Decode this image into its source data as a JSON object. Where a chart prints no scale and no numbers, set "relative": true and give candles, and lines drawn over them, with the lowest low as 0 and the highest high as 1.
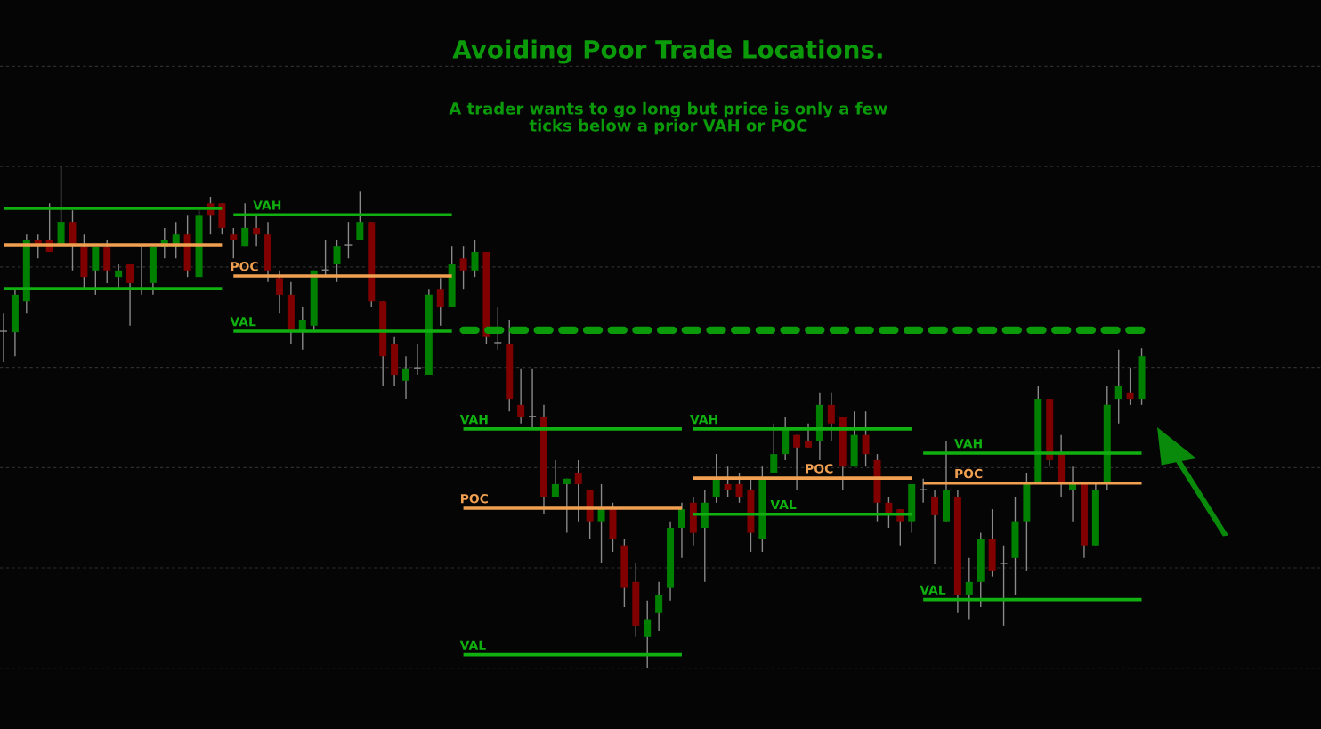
{
  "chart_data": {
    "type": "candlestick",
    "title": "Avoiding Poor Trade Locations.",
    "subtitle": "A trader wants to go long but price is only a few\nticks below a prior VAH or POC",
    "relative": true,
    "grid": "y",
    "colors": [
      "#8a8a8a",
      "#008000",
      "#008000",
      "#800000",
      "#800000",
      "#008000",
      "#800000",
      "#800000",
      "#008000",
      "#800000",
      "#008000",
      "#800000",
      "#8a8a8a",
      "#008000",
      "#008000",
      "#008000",
      "#800000",
      "#008000",
      "#800000",
      "#800000",
      "#800000",
      "#008000",
      "#800000",
      "#800000",
      "#800000",
      "#800000",
      "#008000",
      "#008000",
      "#8a8a8a",
      "#008000",
      "#8a8a8a",
      "#008000",
      "#800000",
      "#800000",
      "#800000",
      "#008000",
      "#8a8a8a",
      "#008000",
      "#800000",
      "#008000",
      "#800000",
      "#008000",
      "#800000",
      "#8a8a8a",
      "#800000",
      "#800000",
      "#8a8a8a",
      "#800000",
      "#008000",
      "#008000",
      "#800000",
      "#800000",
      "#008000",
      "#800000",
      "#800000",
      "#800000",
      "#008000",
      "#008000",
      "#008000",
      "#008000",
      "#800000",
      "#008000",
      "#008000",
      "#800000",
      "#800000",
      "#800000",
      "#008000",
      "#008000",
      "#008000",
      "#800000",
      "#800000",
      "#008000",
      "#800000",
      "#800000",
      "#008000",
      "#800000",
      "#800000",
      "#800000",
      "#800000",
      "#008000",
      "#8a8a8a",
      "#800000",
      "#008000",
      "#800000",
      "#008000",
      "#008000",
      "#800000",
      "#8a8a8a",
      "#008000",
      "#008000",
      "#008000",
      "#800000",
      "#800000",
      "#008000",
      "#800000",
      "#008000",
      "#008000",
      "#008000",
      "#800000",
      "#008000"
    ],
    "categories": [
      null,
      null,
      null,
      null,
      null,
      null,
      null,
      null,
      null,
      null,
      null,
      null,
      null,
      null,
      null,
      null,
      null,
      null,
      null,
      null,
      null,
      null,
      null,
      null,
      null,
      null,
      null,
      null,
      null,
      null,
      null,
      null,
      null,
      null,
      null,
      null,
      null,
      null,
      null,
      null,
      null,
      null,
      null,
      null,
      null,
      null,
      null,
      null,
      null,
      null,
      null,
      null,
      null,
      null,
      null,
      null,
      null,
      null,
      null,
      null,
      null,
      null,
      null,
      null,
      null,
      null,
      null,
      null,
      null,
      null,
      null,
      null,
      null,
      null,
      null,
      null,
      null,
      null,
      null,
      null,
      null,
      null,
      null,
      null,
      null,
      null,
      null,
      null,
      null,
      null,
      null,
      null,
      null,
      null,
      null,
      null,
      null,
      null,
      null,
      null
    ],
    "ohlc": [
      [
        0.672,
        0.707,
        0.61,
        0.672
      ],
      [
        0.67,
        0.754,
        0.622,
        0.745
      ],
      [
        0.732,
        0.865,
        0.707,
        0.853
      ],
      [
        0.853,
        0.865,
        0.817,
        0.846
      ],
      [
        0.853,
        0.927,
        0.83,
        0.83
      ],
      [
        0.846,
        1.0,
        0.846,
        0.89
      ],
      [
        0.89,
        0.913,
        0.793,
        0.846
      ],
      [
        0.84,
        0.865,
        0.759,
        0.78
      ],
      [
        0.793,
        0.84,
        0.745,
        0.84
      ],
      [
        0.84,
        0.853,
        0.768,
        0.793
      ],
      [
        0.78,
        0.805,
        0.759,
        0.793
      ],
      [
        0.805,
        0.805,
        0.683,
        0.768
      ],
      [
        0.84,
        0.84,
        0.745,
        0.84
      ],
      [
        0.768,
        0.84,
        0.745,
        0.84
      ],
      [
        0.84,
        0.878,
        0.817,
        0.853
      ],
      [
        0.84,
        0.89,
        0.817,
        0.865
      ],
      [
        0.865,
        0.902,
        0.78,
        0.793
      ],
      [
        0.78,
        0.913,
        0.78,
        0.902
      ],
      [
        0.927,
        0.94,
        0.865,
        0.902
      ],
      [
        0.927,
        0.927,
        0.865,
        0.878
      ],
      [
        0.865,
        0.878,
        0.817,
        0.853
      ],
      [
        0.842,
        0.927,
        0.842,
        0.878
      ],
      [
        0.878,
        0.901,
        0.842,
        0.865
      ],
      [
        0.865,
        0.89,
        0.77,
        0.793
      ],
      [
        0.778,
        0.793,
        0.707,
        0.745
      ],
      [
        0.745,
        0.77,
        0.647,
        0.672
      ],
      [
        0.672,
        0.72,
        0.635,
        0.695
      ],
      [
        0.683,
        0.793,
        0.672,
        0.793
      ],
      [
        0.794,
        0.853,
        0.782,
        0.794
      ],
      [
        0.805,
        0.853,
        0.77,
        0.842
      ],
      [
        0.844,
        0.89,
        0.817,
        0.844
      ],
      [
        0.853,
        0.95,
        0.853,
        0.89
      ],
      [
        0.89,
        0.89,
        0.72,
        0.732
      ],
      [
        0.732,
        0.732,
        0.562,
        0.622
      ],
      [
        0.647,
        0.66,
        0.562,
        0.585
      ],
      [
        0.573,
        0.622,
        0.537,
        0.598
      ],
      [
        0.599,
        0.647,
        0.585,
        0.599
      ],
      [
        0.585,
        0.755,
        0.585,
        0.745
      ],
      [
        0.755,
        0.778,
        0.683,
        0.72
      ],
      [
        0.72,
        0.842,
        0.72,
        0.805
      ],
      [
        0.817,
        0.842,
        0.755,
        0.793
      ],
      [
        0.793,
        0.853,
        0.78,
        0.83
      ],
      [
        0.83,
        0.83,
        0.647,
        0.66
      ],
      [
        0.649,
        0.72,
        0.635,
        0.649
      ],
      [
        0.647,
        0.695,
        0.512,
        0.537
      ],
      [
        0.525,
        0.598,
        0.488,
        0.5
      ],
      [
        0.502,
        0.598,
        0.479,
        0.502
      ],
      [
        0.5,
        0.525,
        0.307,
        0.342
      ],
      [
        0.342,
        0.415,
        0.342,
        0.367
      ],
      [
        0.367,
        0.378,
        0.27,
        0.378
      ],
      [
        0.39,
        0.415,
        0.293,
        0.367
      ],
      [
        0.355,
        0.355,
        0.257,
        0.293
      ],
      [
        0.293,
        0.367,
        0.209,
        0.317
      ],
      [
        0.317,
        0.33,
        0.232,
        0.257
      ],
      [
        0.245,
        0.257,
        0.122,
        0.16
      ],
      [
        0.172,
        0.209,
        0.062,
        0.085
      ],
      [
        0.062,
        0.135,
        0,
        0.098
      ],
      [
        0.11,
        0.172,
        0.074,
        0.147
      ],
      [
        0.16,
        0.293,
        0.135,
        0.28
      ],
      [
        0.28,
        0.33,
        0.22,
        0.317
      ],
      [
        0.33,
        0.342,
        0.245,
        0.27
      ],
      [
        0.28,
        0.355,
        0.172,
        0.33
      ],
      [
        0.342,
        0.427,
        0.33,
        0.378
      ],
      [
        0.367,
        0.402,
        0.342,
        0.355
      ],
      [
        0.367,
        0.39,
        0.33,
        0.342
      ],
      [
        0.355,
        0.378,
        0.232,
        0.27
      ],
      [
        0.257,
        0.402,
        0.232,
        0.378
      ],
      [
        0.39,
        0.488,
        0.39,
        0.427
      ],
      [
        0.427,
        0.5,
        0.415,
        0.475
      ],
      [
        0.465,
        0.465,
        0.355,
        0.44
      ],
      [
        0.452,
        0.488,
        0.44,
        0.44
      ],
      [
        0.452,
        0.55,
        0.415,
        0.525
      ],
      [
        0.525,
        0.55,
        0.452,
        0.488
      ],
      [
        0.5,
        0.5,
        0.355,
        0.402
      ],
      [
        0.402,
        0.512,
        0.402,
        0.465
      ],
      [
        0.465,
        0.512,
        0.402,
        0.427
      ],
      [
        0.415,
        0.427,
        0.293,
        0.33
      ],
      [
        0.33,
        0.342,
        0.28,
        0.305
      ],
      [
        0.317,
        0.317,
        0.245,
        0.293
      ],
      [
        0.293,
        0.367,
        0.27,
        0.367
      ],
      [
        0.356,
        0.378,
        0.33,
        0.356
      ],
      [
        0.342,
        0.355,
        0.207,
        0.305
      ],
      [
        0.293,
        0.452,
        0.293,
        0.355
      ],
      [
        0.342,
        0.355,
        0.11,
        0.147
      ],
      [
        0.147,
        0.22,
        0.098,
        0.172
      ],
      [
        0.172,
        0.27,
        0.122,
        0.257
      ],
      [
        0.257,
        0.317,
        0.183,
        0.195
      ],
      [
        0.209,
        0.245,
        0.085,
        0.209
      ],
      [
        0.22,
        0.342,
        0.147,
        0.293
      ],
      [
        0.293,
        0.39,
        0.195,
        0.367
      ],
      [
        0.369,
        0.562,
        0.369,
        0.537
      ],
      [
        0.537,
        0.537,
        0.402,
        0.415
      ],
      [
        0.427,
        0.465,
        0.342,
        0.369
      ],
      [
        0.355,
        0.402,
        0.293,
        0.367
      ],
      [
        0.367,
        0.367,
        0.22,
        0.245
      ],
      [
        0.245,
        0.367,
        0.245,
        0.355
      ],
      [
        0.369,
        0.562,
        0.355,
        0.525
      ],
      [
        0.537,
        0.635,
        0.488,
        0.562
      ],
      [
        0.55,
        0.599,
        0.525,
        0.537
      ],
      [
        0.537,
        0.638,
        0.525,
        0.622
      ]
    ],
    "series": [
      {
        "type": "line",
        "color": "#10b010",
        "values": [
          0.917,
          0.917,
          0.917,
          0.917,
          0.917,
          0.917,
          0.917,
          0.917,
          0.917,
          0.917,
          0.917,
          0.917,
          0.917,
          0.917,
          0.917,
          0.917,
          0.917,
          0.917,
          0.917,
          0.917,
          null,
          null,
          null,
          null,
          null,
          null,
          null,
          null,
          null,
          null,
          null,
          null,
          null,
          null,
          null,
          null,
          null,
          null,
          null,
          null,
          null,
          null,
          null,
          null,
          null,
          null,
          null,
          null,
          null,
          null,
          null,
          null,
          null,
          null,
          null,
          null,
          null,
          null,
          null,
          null,
          null,
          null,
          null,
          null,
          null,
          null,
          null,
          null,
          null,
          null,
          null,
          null,
          null,
          null,
          null,
          null,
          null,
          null,
          null,
          null,
          null,
          null,
          null,
          null,
          null,
          null,
          null,
          null,
          null,
          null,
          null,
          null,
          null,
          null,
          null,
          null,
          null,
          null,
          null,
          null
        ]
      },
      {
        "type": "line",
        "color": "#f0a050",
        "values": [
          0.844,
          0.844,
          0.844,
          0.844,
          0.844,
          0.844,
          0.844,
          0.844,
          0.844,
          0.844,
          0.844,
          0.844,
          0.844,
          0.844,
          0.844,
          0.844,
          0.844,
          0.844,
          0.844,
          0.844,
          null,
          null,
          null,
          null,
          null,
          null,
          null,
          null,
          null,
          null,
          null,
          null,
          null,
          null,
          null,
          null,
          null,
          null,
          null,
          null,
          null,
          null,
          null,
          null,
          null,
          null,
          null,
          null,
          null,
          null,
          null,
          null,
          null,
          null,
          null,
          null,
          null,
          null,
          null,
          null,
          null,
          null,
          null,
          null,
          null,
          null,
          null,
          null,
          null,
          null,
          null,
          null,
          null,
          null,
          null,
          null,
          null,
          null,
          null,
          null,
          null,
          null,
          null,
          null,
          null,
          null,
          null,
          null,
          null,
          null,
          null,
          null,
          null,
          null,
          null,
          null,
          null,
          null,
          null,
          null
        ]
      },
      {
        "type": "line",
        "color": "#10b010",
        "values": [
          0.757,
          0.757,
          0.757,
          0.757,
          0.757,
          0.757,
          0.757,
          0.757,
          0.757,
          0.757,
          0.757,
          0.757,
          0.757,
          0.757,
          0.757,
          0.757,
          0.757,
          0.757,
          0.757,
          0.757,
          null,
          null,
          null,
          null,
          null,
          null,
          null,
          null,
          null,
          null,
          null,
          null,
          null,
          null,
          null,
          null,
          null,
          null,
          null,
          null,
          null,
          null,
          null,
          null,
          null,
          null,
          null,
          null,
          null,
          null,
          null,
          null,
          null,
          null,
          null,
          null,
          null,
          null,
          null,
          null,
          null,
          null,
          null,
          null,
          null,
          null,
          null,
          null,
          null,
          null,
          null,
          null,
          null,
          null,
          null,
          null,
          null,
          null,
          null,
          null,
          null,
          null,
          null,
          null,
          null,
          null,
          null,
          null,
          null,
          null,
          null,
          null,
          null,
          null,
          null,
          null,
          null,
          null,
          null,
          null
        ]
      },
      {
        "type": "line",
        "name": "VAH",
        "color": "#10b010",
        "values": [
          null,
          null,
          null,
          null,
          null,
          null,
          null,
          null,
          null,
          null,
          null,
          null,
          null,
          null,
          null,
          null,
          null,
          null,
          null,
          null,
          0.904,
          0.904,
          0.904,
          0.904,
          0.904,
          0.904,
          0.904,
          0.904,
          0.904,
          0.904,
          0.904,
          0.904,
          0.904,
          0.904,
          0.904,
          0.904,
          0.904,
          0.904,
          0.904,
          0.904,
          null,
          null,
          null,
          null,
          null,
          null,
          null,
          null,
          null,
          null,
          null,
          null,
          null,
          null,
          null,
          null,
          null,
          null,
          null,
          null,
          null,
          null,
          null,
          null,
          null,
          null,
          null,
          null,
          null,
          null,
          null,
          null,
          null,
          null,
          null,
          null,
          null,
          null,
          null,
          null,
          null,
          null,
          null,
          null,
          null,
          null,
          null,
          null,
          null,
          null,
          null,
          null,
          null,
          null,
          null,
          null,
          null,
          null,
          null,
          null
        ]
      },
      {
        "type": "line",
        "name": "POC",
        "color": "#f0a050",
        "values": [
          null,
          null,
          null,
          null,
          null,
          null,
          null,
          null,
          null,
          null,
          null,
          null,
          null,
          null,
          null,
          null,
          null,
          null,
          null,
          null,
          0.782,
          0.782,
          0.782,
          0.782,
          0.782,
          0.782,
          0.782,
          0.782,
          0.782,
          0.782,
          0.782,
          0.782,
          0.782,
          0.782,
          0.782,
          0.782,
          0.782,
          0.782,
          0.782,
          0.782,
          null,
          null,
          null,
          null,
          null,
          null,
          null,
          null,
          null,
          null,
          null,
          null,
          null,
          null,
          null,
          null,
          null,
          null,
          null,
          null,
          null,
          null,
          null,
          null,
          null,
          null,
          null,
          null,
          null,
          null,
          null,
          null,
          null,
          null,
          null,
          null,
          null,
          null,
          null,
          null,
          null,
          null,
          null,
          null,
          null,
          null,
          null,
          null,
          null,
          null,
          null,
          null,
          null,
          null,
          null,
          null,
          null,
          null,
          null,
          null
        ]
      },
      {
        "type": "line",
        "name": "VAL",
        "color": "#10b010",
        "values": [
          null,
          null,
          null,
          null,
          null,
          null,
          null,
          null,
          null,
          null,
          null,
          null,
          null,
          null,
          null,
          null,
          null,
          null,
          null,
          null,
          0.672,
          0.672,
          0.672,
          0.672,
          0.672,
          0.672,
          0.672,
          0.672,
          0.672,
          0.672,
          0.672,
          0.672,
          0.672,
          0.672,
          0.672,
          0.672,
          0.672,
          0.672,
          0.672,
          0.672,
          null,
          null,
          null,
          null,
          null,
          null,
          null,
          null,
          null,
          null,
          null,
          null,
          null,
          null,
          null,
          null,
          null,
          null,
          null,
          null,
          null,
          null,
          null,
          null,
          null,
          null,
          null,
          null,
          null,
          null,
          null,
          null,
          null,
          null,
          null,
          null,
          null,
          null,
          null,
          null,
          null,
          null,
          null,
          null,
          null,
          null,
          null,
          null,
          null,
          null,
          null,
          null,
          null,
          null,
          null,
          null,
          null,
          null,
          null,
          null
        ]
      },
      {
        "type": "line",
        "name": "VAH",
        "color": "#10b010",
        "values": [
          null,
          null,
          null,
          null,
          null,
          null,
          null,
          null,
          null,
          null,
          null,
          null,
          null,
          null,
          null,
          null,
          null,
          null,
          null,
          null,
          null,
          null,
          null,
          null,
          null,
          null,
          null,
          null,
          null,
          null,
          null,
          null,
          null,
          null,
          null,
          null,
          null,
          null,
          null,
          null,
          0.477,
          0.477,
          0.477,
          0.477,
          0.477,
          0.477,
          0.477,
          0.477,
          0.477,
          0.477,
          0.477,
          0.477,
          0.477,
          0.477,
          0.477,
          0.477,
          0.477,
          0.477,
          0.477,
          0.477,
          null,
          null,
          null,
          null,
          null,
          null,
          null,
          null,
          null,
          null,
          null,
          null,
          null,
          null,
          null,
          null,
          null,
          null,
          null,
          null,
          null,
          null,
          null,
          null,
          null,
          null,
          null,
          null,
          null,
          null,
          null,
          null,
          null,
          null,
          null,
          null,
          null,
          null,
          null,
          null
        ]
      },
      {
        "type": "line",
        "name": "POC",
        "color": "#f0a050",
        "values": [
          null,
          null,
          null,
          null,
          null,
          null,
          null,
          null,
          null,
          null,
          null,
          null,
          null,
          null,
          null,
          null,
          null,
          null,
          null,
          null,
          null,
          null,
          null,
          null,
          null,
          null,
          null,
          null,
          null,
          null,
          null,
          null,
          null,
          null,
          null,
          null,
          null,
          null,
          null,
          null,
          0.319,
          0.319,
          0.319,
          0.319,
          0.319,
          0.319,
          0.319,
          0.319,
          0.319,
          0.319,
          0.319,
          0.319,
          0.319,
          0.319,
          0.319,
          0.319,
          0.319,
          0.319,
          0.319,
          0.319,
          null,
          null,
          null,
          null,
          null,
          null,
          null,
          null,
          null,
          null,
          null,
          null,
          null,
          null,
          null,
          null,
          null,
          null,
          null,
          null,
          null,
          null,
          null,
          null,
          null,
          null,
          null,
          null,
          null,
          null,
          null,
          null,
          null,
          null,
          null,
          null,
          null,
          null,
          null,
          null
        ]
      },
      {
        "type": "line",
        "name": "VAL",
        "color": "#10b010",
        "values": [
          null,
          null,
          null,
          null,
          null,
          null,
          null,
          null,
          null,
          null,
          null,
          null,
          null,
          null,
          null,
          null,
          null,
          null,
          null,
          null,
          null,
          null,
          null,
          null,
          null,
          null,
          null,
          null,
          null,
          null,
          null,
          null,
          null,
          null,
          null,
          null,
          null,
          null,
          null,
          null,
          0.027,
          0.027,
          0.027,
          0.027,
          0.027,
          0.027,
          0.027,
          0.027,
          0.027,
          0.027,
          0.027,
          0.027,
          0.027,
          0.027,
          0.027,
          0.027,
          0.027,
          0.027,
          0.027,
          0.027,
          null,
          null,
          null,
          null,
          null,
          null,
          null,
          null,
          null,
          null,
          null,
          null,
          null,
          null,
          null,
          null,
          null,
          null,
          null,
          null,
          null,
          null,
          null,
          null,
          null,
          null,
          null,
          null,
          null,
          null,
          null,
          null,
          null,
          null,
          null,
          null,
          null,
          null,
          null,
          null
        ]
      },
      {
        "type": "line",
        "name": "VAH",
        "color": "#10b010",
        "values": [
          null,
          null,
          null,
          null,
          null,
          null,
          null,
          null,
          null,
          null,
          null,
          null,
          null,
          null,
          null,
          null,
          null,
          null,
          null,
          null,
          null,
          null,
          null,
          null,
          null,
          null,
          null,
          null,
          null,
          null,
          null,
          null,
          null,
          null,
          null,
          null,
          null,
          null,
          null,
          null,
          null,
          null,
          null,
          null,
          null,
          null,
          null,
          null,
          null,
          null,
          null,
          null,
          null,
          null,
          null,
          null,
          null,
          null,
          null,
          null,
          0.477,
          0.477,
          0.477,
          0.477,
          0.477,
          0.477,
          0.477,
          0.477,
          0.477,
          0.477,
          0.477,
          0.477,
          0.477,
          0.477,
          0.477,
          0.477,
          0.477,
          0.477,
          0.477,
          0.477,
          null,
          null,
          null,
          null,
          null,
          null,
          null,
          null,
          null,
          null,
          null,
          null,
          null,
          null,
          null,
          null,
          null,
          null,
          null,
          null
        ]
      },
      {
        "type": "line",
        "name": "POC",
        "color": "#f0a050",
        "values": [
          null,
          null,
          null,
          null,
          null,
          null,
          null,
          null,
          null,
          null,
          null,
          null,
          null,
          null,
          null,
          null,
          null,
          null,
          null,
          null,
          null,
          null,
          null,
          null,
          null,
          null,
          null,
          null,
          null,
          null,
          null,
          null,
          null,
          null,
          null,
          null,
          null,
          null,
          null,
          null,
          null,
          null,
          null,
          null,
          null,
          null,
          null,
          null,
          null,
          null,
          null,
          null,
          null,
          null,
          null,
          null,
          null,
          null,
          null,
          null,
          0.379,
          0.379,
          0.379,
          0.379,
          0.379,
          0.379,
          0.379,
          0.379,
          0.379,
          0.379,
          0.379,
          0.379,
          0.379,
          0.379,
          0.379,
          0.379,
          0.379,
          0.379,
          0.379,
          0.379,
          null,
          null,
          null,
          null,
          null,
          null,
          null,
          null,
          null,
          null,
          null,
          null,
          null,
          null,
          null,
          null,
          null,
          null,
          null,
          null
        ]
      },
      {
        "type": "line",
        "name": "VAL",
        "color": "#10b010",
        "values": [
          null,
          null,
          null,
          null,
          null,
          null,
          null,
          null,
          null,
          null,
          null,
          null,
          null,
          null,
          null,
          null,
          null,
          null,
          null,
          null,
          null,
          null,
          null,
          null,
          null,
          null,
          null,
          null,
          null,
          null,
          null,
          null,
          null,
          null,
          null,
          null,
          null,
          null,
          null,
          null,
          null,
          null,
          null,
          null,
          null,
          null,
          null,
          null,
          null,
          null,
          null,
          null,
          null,
          null,
          null,
          null,
          null,
          null,
          null,
          null,
          0.307,
          0.307,
          0.307,
          0.307,
          0.307,
          0.307,
          0.307,
          0.307,
          0.307,
          0.307,
          0.307,
          0.307,
          0.307,
          0.307,
          0.307,
          0.307,
          0.307,
          0.307,
          0.307,
          0.307,
          null,
          null,
          null,
          null,
          null,
          null,
          null,
          null,
          null,
          null,
          null,
          null,
          null,
          null,
          null,
          null,
          null,
          null,
          null,
          null
        ]
      },
      {
        "type": "line",
        "name": "VAH",
        "color": "#10b010",
        "values": [
          null,
          null,
          null,
          null,
          null,
          null,
          null,
          null,
          null,
          null,
          null,
          null,
          null,
          null,
          null,
          null,
          null,
          null,
          null,
          null,
          null,
          null,
          null,
          null,
          null,
          null,
          null,
          null,
          null,
          null,
          null,
          null,
          null,
          null,
          null,
          null,
          null,
          null,
          null,
          null,
          null,
          null,
          null,
          null,
          null,
          null,
          null,
          null,
          null,
          null,
          null,
          null,
          null,
          null,
          null,
          null,
          null,
          null,
          null,
          null,
          null,
          null,
          null,
          null,
          null,
          null,
          null,
          null,
          null,
          null,
          null,
          null,
          null,
          null,
          null,
          null,
          null,
          null,
          null,
          null,
          0.429,
          0.429,
          0.429,
          0.429,
          0.429,
          0.429,
          0.429,
          0.429,
          0.429,
          0.429,
          0.429,
          0.429,
          0.429,
          0.429,
          0.429,
          0.429,
          0.429,
          0.429,
          0.429,
          0.429
        ]
      },
      {
        "type": "line",
        "name": "POC",
        "color": "#f0a050",
        "values": [
          null,
          null,
          null,
          null,
          null,
          null,
          null,
          null,
          null,
          null,
          null,
          null,
          null,
          null,
          null,
          null,
          null,
          null,
          null,
          null,
          null,
          null,
          null,
          null,
          null,
          null,
          null,
          null,
          null,
          null,
          null,
          null,
          null,
          null,
          null,
          null,
          null,
          null,
          null,
          null,
          null,
          null,
          null,
          null,
          null,
          null,
          null,
          null,
          null,
          null,
          null,
          null,
          null,
          null,
          null,
          null,
          null,
          null,
          null,
          null,
          null,
          null,
          null,
          null,
          null,
          null,
          null,
          null,
          null,
          null,
          null,
          null,
          null,
          null,
          null,
          null,
          null,
          null,
          null,
          null,
          0.369,
          0.369,
          0.369,
          0.369,
          0.369,
          0.369,
          0.369,
          0.369,
          0.369,
          0.369,
          0.369,
          0.369,
          0.369,
          0.369,
          0.369,
          0.369,
          0.369,
          0.369,
          0.369,
          0.369
        ]
      },
      {
        "type": "line",
        "name": "VAL",
        "color": "#10b010",
        "values": [
          null,
          null,
          null,
          null,
          null,
          null,
          null,
          null,
          null,
          null,
          null,
          null,
          null,
          null,
          null,
          null,
          null,
          null,
          null,
          null,
          null,
          null,
          null,
          null,
          null,
          null,
          null,
          null,
          null,
          null,
          null,
          null,
          null,
          null,
          null,
          null,
          null,
          null,
          null,
          null,
          null,
          null,
          null,
          null,
          null,
          null,
          null,
          null,
          null,
          null,
          null,
          null,
          null,
          null,
          null,
          null,
          null,
          null,
          null,
          null,
          null,
          null,
          null,
          null,
          null,
          null,
          null,
          null,
          null,
          null,
          null,
          null,
          null,
          null,
          null,
          null,
          null,
          null,
          null,
          null,
          0.137,
          0.137,
          0.137,
          0.137,
          0.137,
          0.137,
          0.137,
          0.137,
          0.137,
          0.137,
          0.137,
          0.137,
          0.137,
          0.137,
          0.137,
          0.137,
          0.137,
          0.137,
          0.137,
          0.137
        ]
      },
      {
        "type": "line",
        "color": "#0a9a0a",
        "line_style": "dashed",
        "values": [
          null,
          null,
          null,
          null,
          null,
          null,
          null,
          null,
          null,
          null,
          null,
          null,
          null,
          null,
          null,
          null,
          null,
          null,
          null,
          null,
          null,
          null,
          null,
          null,
          null,
          null,
          null,
          null,
          null,
          null,
          null,
          null,
          null,
          null,
          null,
          null,
          null,
          null,
          null,
          null,
          0.674,
          0.674,
          0.674,
          0.674,
          0.674,
          0.674,
          0.674,
          0.674,
          0.674,
          0.674,
          0.674,
          0.674,
          0.674,
          0.674,
          0.674,
          0.674,
          0.674,
          0.674,
          0.674,
          0.674,
          0.674,
          0.674,
          0.674,
          0.674,
          0.674,
          0.674,
          0.674,
          0.674,
          0.674,
          0.674,
          0.674,
          0.674,
          0.674,
          0.674,
          0.674,
          0.674,
          0.674,
          0.674,
          0.674,
          0.674,
          0.674,
          0.674,
          0.674,
          0.674,
          0.674,
          0.674,
          0.674,
          0.674,
          0.674,
          0.674,
          0.674,
          0.674,
          0.674,
          0.674,
          0.674,
          0.674,
          0.674,
          0.674,
          0.674,
          0.674
        ]
      }
    ]
  }
}
